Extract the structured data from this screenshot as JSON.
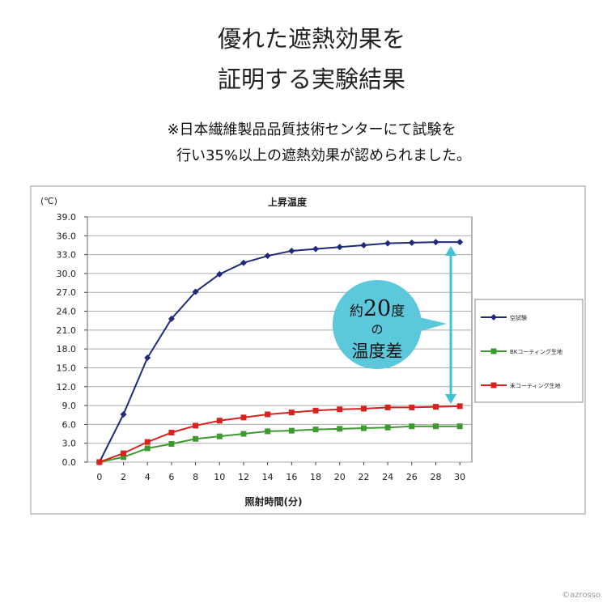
{
  "header": {
    "title_lines": [
      "優れた遮熱効果を",
      "証明する実験結果"
    ],
    "note_lines": [
      "※日本繊維製品品質技術センターにて試験を",
      "行い35%以上の遮熱効果が認められました。"
    ]
  },
  "chart_data": {
    "type": "line",
    "title": "上昇温度",
    "y_unit": "(℃)",
    "x_label": "照射時間(分)",
    "x": [
      0,
      2,
      4,
      6,
      8,
      10,
      12,
      14,
      16,
      18,
      20,
      22,
      24,
      26,
      28,
      30
    ],
    "xlim": [
      -1,
      31
    ],
    "xticks": [
      0,
      2,
      4,
      6,
      8,
      10,
      12,
      14,
      16,
      18,
      20,
      22,
      24,
      26,
      28,
      30
    ],
    "ylim": [
      0,
      39
    ],
    "yticks": [
      {
        "value": 0,
        "label": "0.0"
      },
      {
        "value": 3,
        "label": "3.0"
      },
      {
        "value": 6,
        "label": "6.0"
      },
      {
        "value": 9,
        "label": "9.0"
      },
      {
        "value": 12,
        "label": "12.0"
      },
      {
        "value": 15,
        "label": "15.0"
      },
      {
        "value": 18,
        "label": "18.0"
      },
      {
        "value": 21,
        "label": "21.0"
      },
      {
        "value": 24,
        "label": "24.0"
      },
      {
        "value": 27,
        "label": "27.0"
      },
      {
        "value": 30,
        "label": "30.0"
      },
      {
        "value": 33,
        "label": "33.0"
      },
      {
        "value": 36,
        "label": "36.0"
      },
      {
        "value": 39,
        "label": "39.0"
      }
    ],
    "grid": true,
    "legend": "right",
    "series": [
      {
        "name": "空試験",
        "color": "#1f2a7a",
        "marker": "diamond",
        "values": [
          0,
          7.6,
          16.6,
          22.8,
          27.1,
          29.9,
          31.7,
          32.8,
          33.6,
          33.9,
          34.2,
          34.5,
          34.8,
          34.9,
          35.0,
          35.0
        ]
      },
      {
        "name": "BKコーティング生地",
        "color": "#3c9a2e",
        "marker": "square",
        "values": [
          0,
          0.8,
          2.2,
          2.9,
          3.7,
          4.1,
          4.5,
          4.9,
          5.0,
          5.2,
          5.3,
          5.4,
          5.5,
          5.7,
          5.7,
          5.7
        ]
      },
      {
        "name": "未コーティング生地",
        "color": "#d8221f",
        "marker": "square",
        "values": [
          0,
          1.4,
          3.2,
          4.7,
          5.8,
          6.6,
          7.1,
          7.6,
          7.9,
          8.2,
          8.4,
          8.5,
          8.7,
          8.7,
          8.8,
          8.9
        ]
      }
    ],
    "annotation": {
      "prefix": "約",
      "number": "20",
      "suffix": "度",
      "line2": "の",
      "line3": "温度差"
    }
  },
  "watermark": "©azrosso"
}
